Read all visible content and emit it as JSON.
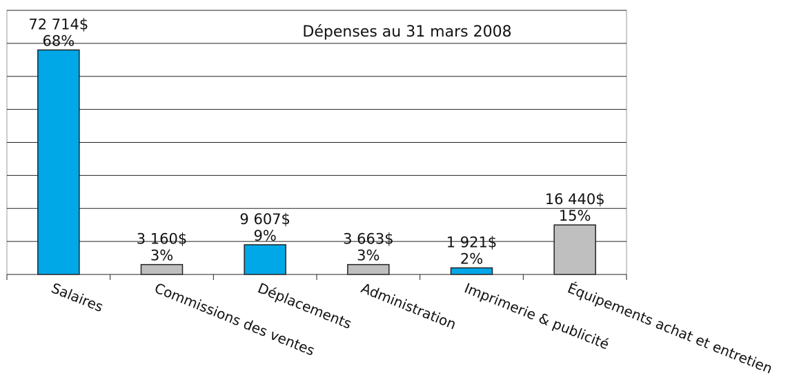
{
  "chart_data": {
    "type": "bar",
    "title": "Dépenses au 31 mars 2008",
    "categories": [
      "Salaires",
      "Commissions des ventes",
      "Déplacements",
      "Administration",
      "Imprimerie & publicité",
      "Équipements achat et entretien"
    ],
    "values": [
      68,
      3,
      9,
      3,
      2,
      15
    ],
    "value_labels": [
      "68%",
      "3%",
      "9%",
      "3%",
      "2%",
      "15%"
    ],
    "amount_labels": [
      "72 714$",
      "3 160$",
      "9 607$",
      "3 663$",
      "1 921$",
      "16 440$"
    ],
    "colors": [
      "#00a8e8",
      "#bfbfbf",
      "#00a8e8",
      "#bfbfbf",
      "#00a8e8",
      "#bfbfbf"
    ],
    "ylim": [
      0,
      80
    ],
    "yticks": [
      0,
      10,
      20,
      30,
      40,
      50,
      60,
      70,
      80
    ],
    "grid": true
  }
}
